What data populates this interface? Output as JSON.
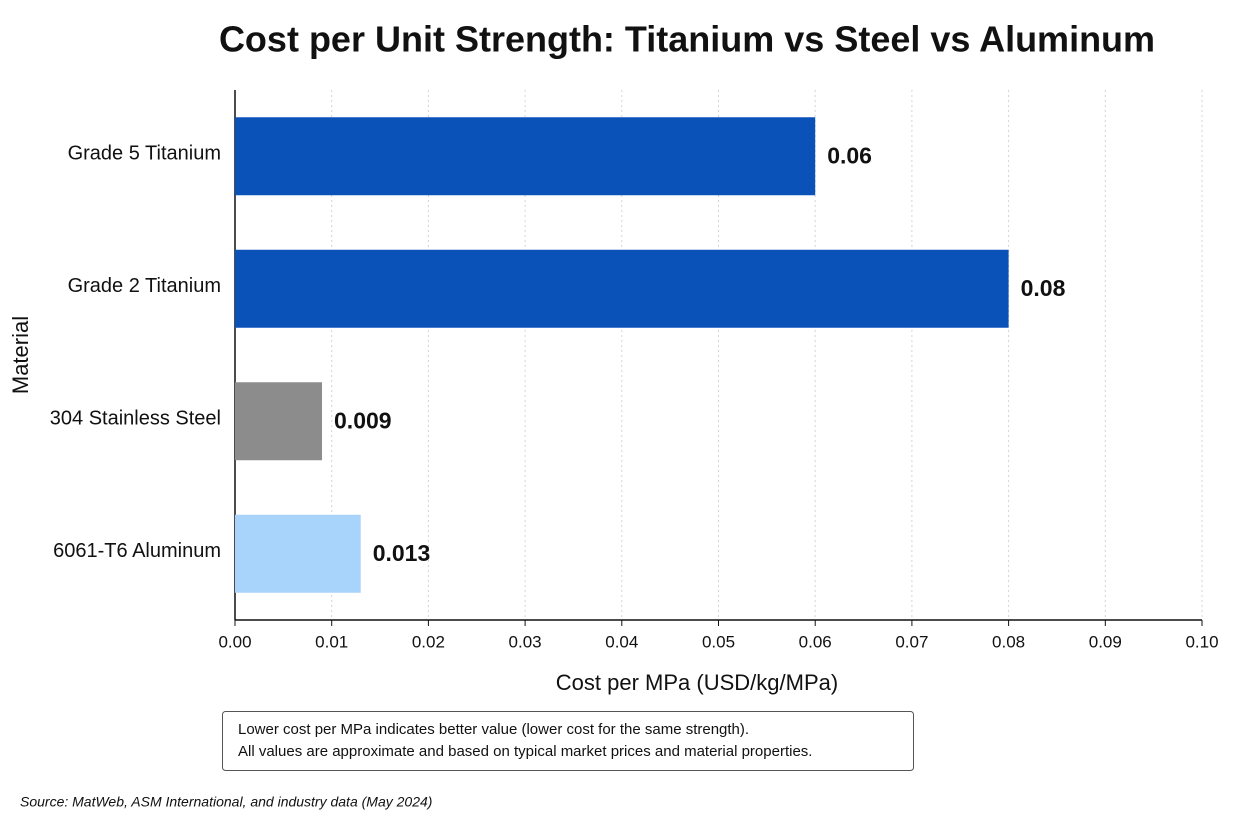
{
  "chart_data": {
    "type": "barh",
    "title": "Cost per Unit Strength: Titanium vs Steel vs Aluminum",
    "x_label": "Cost per MPa (USD/kg/MPa)",
    "y_label": "Material",
    "categories": [
      "Grade 5 Titanium",
      "Grade 2 Titanium",
      "304 Stainless Steel",
      "6061-T6 Aluminum"
    ],
    "values": [
      0.06,
      0.08,
      0.009,
      0.013
    ],
    "colors": [
      "#0a52b8",
      "#0a52b8",
      "#8c8c8c",
      "#a8d4fc"
    ],
    "label_colors": [
      "#0b4fb3",
      "#0b4fb3",
      "#555555",
      "#2f9be8"
    ],
    "xlim": [
      0,
      0.1
    ],
    "xticks": [
      {
        "value": 0,
        "label": "0.00"
      },
      0.01,
      0.02,
      0.03,
      0.04,
      0.05,
      0.06,
      0.07,
      0.08,
      0.09,
      {
        "value": 0.1,
        "label": "0.10"
      }
    ],
    "grid": true,
    "notes": [
      "Lower cost per MPa indicates better value (lower cost for the same strength).",
      "All values are approximate and based on typical market prices and material properties."
    ],
    "source": "Source: MatWeb, ASM International, and industry data (May 2024)"
  }
}
